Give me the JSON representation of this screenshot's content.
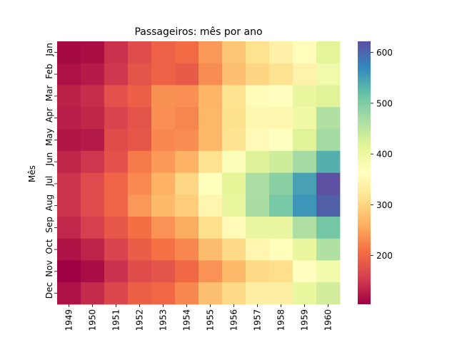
{
  "chart_data": {
    "type": "heatmap",
    "title": "Passageiros: mês por ano",
    "xlabel": "",
    "ylabel": "Mês",
    "x": [
      "1949",
      "1950",
      "1951",
      "1952",
      "1953",
      "1954",
      "1955",
      "1956",
      "1957",
      "1958",
      "1959",
      "1960"
    ],
    "y": [
      "Jan",
      "Feb",
      "Mar",
      "Apr",
      "May",
      "Jun",
      "Jul",
      "Aug",
      "Sep",
      "Oct",
      "Nov",
      "Dec"
    ],
    "values": [
      [
        112,
        115,
        145,
        171,
        196,
        204,
        242,
        284,
        315,
        340,
        360,
        417
      ],
      [
        118,
        126,
        150,
        180,
        196,
        188,
        233,
        277,
        301,
        318,
        342,
        391
      ],
      [
        132,
        141,
        178,
        193,
        236,
        235,
        267,
        317,
        356,
        362,
        406,
        419
      ],
      [
        129,
        135,
        163,
        181,
        235,
        227,
        269,
        313,
        348,
        348,
        396,
        461
      ],
      [
        121,
        125,
        172,
        183,
        229,
        234,
        270,
        318,
        355,
        363,
        420,
        472
      ],
      [
        135,
        149,
        178,
        218,
        243,
        264,
        315,
        374,
        422,
        435,
        472,
        535
      ],
      [
        148,
        170,
        199,
        230,
        264,
        302,
        364,
        413,
        465,
        491,
        548,
        622
      ],
      [
        148,
        170,
        199,
        242,
        272,
        293,
        347,
        405,
        467,
        505,
        559,
        606
      ],
      [
        136,
        158,
        184,
        209,
        237,
        259,
        312,
        355,
        404,
        404,
        463,
        508
      ],
      [
        119,
        133,
        162,
        191,
        211,
        229,
        274,
        306,
        347,
        359,
        407,
        461
      ],
      [
        104,
        114,
        146,
        172,
        180,
        203,
        237,
        271,
        305,
        310,
        362,
        390
      ],
      [
        118,
        140,
        166,
        194,
        201,
        229,
        278,
        306,
        336,
        337,
        405,
        432
      ]
    ],
    "colorscale": "Spectral",
    "vmin": 104,
    "vmax": 622,
    "colorbar_ticks": [
      200,
      300,
      400,
      500,
      600
    ]
  }
}
